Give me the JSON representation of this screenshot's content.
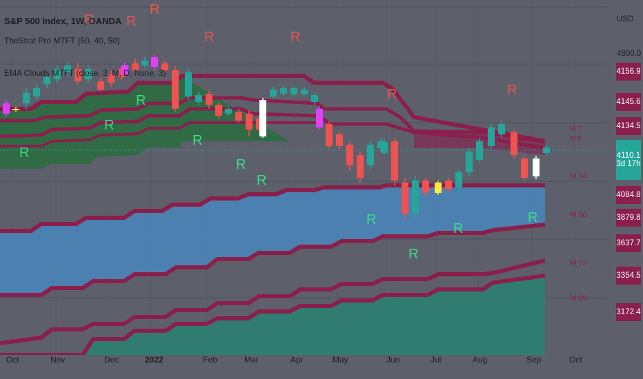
{
  "legend": {
    "title": "S&P 500 Index, 1W, OANDA",
    "indicator1": "TheStrat Pro MTFT (50, 40, 50)",
    "indicator2": "EMA Clouds MTFT (close, 3, M, D, None, 3)"
  },
  "price_axis": {
    "currency": "USD",
    "plain_labels": [
      "4800.0"
    ],
    "badges": [
      {
        "value": "4156.9",
        "color": "#8a1f4c"
      },
      {
        "value": "4145.6",
        "color": "#8a1f4c"
      },
      {
        "value": "4134.5",
        "color": "#8a1f4c"
      },
      {
        "value": "4110.1",
        "sub": "3d 17h",
        "color": "#26a69a"
      },
      {
        "value": "4084.8",
        "color": "#8a1f4c"
      },
      {
        "value": "3879.8",
        "color": "#8a1f4c"
      },
      {
        "value": "3637.7",
        "color": "#8a1f4c"
      },
      {
        "value": "3354.5",
        "color": "#8a1f4c"
      },
      {
        "value": "3172.4",
        "color": "#8a1f4c"
      }
    ]
  },
  "ma_labels": [
    "M 34",
    "M 50",
    "M 72",
    "M 89"
  ],
  "time_axis": [
    {
      "label": "Oct"
    },
    {
      "label": "Nov"
    },
    {
      "label": "Dec"
    },
    {
      "label": "2022",
      "bold": true
    },
    {
      "label": "Feb"
    },
    {
      "label": "Mar"
    },
    {
      "label": "Apr"
    },
    {
      "label": "May"
    },
    {
      "label": "Jun"
    },
    {
      "label": "Jul"
    },
    {
      "label": "Aug"
    },
    {
      "label": "Sep"
    },
    {
      "label": "Oct"
    }
  ],
  "markers": {
    "reversal": "R"
  },
  "colors": {
    "background": "#5d606b",
    "bull": "#26a69a",
    "bear": "#ef5350",
    "band": "#8a1f4c",
    "cloud_green": "#2e6b44",
    "cloud_blue": "#4a82b4",
    "cloud_teal": "#2e7d72",
    "marker_red": "#ef5350",
    "marker_green": "#3ddc84"
  }
}
